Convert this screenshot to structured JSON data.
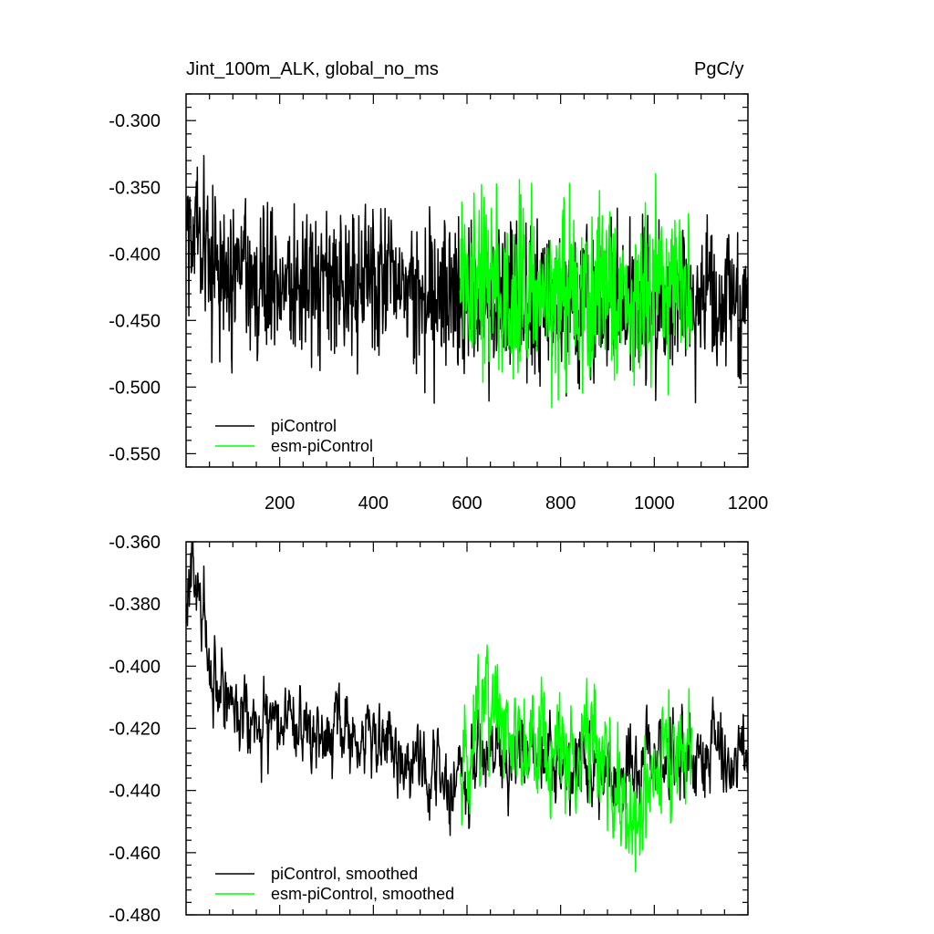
{
  "chart_data": [
    {
      "type": "line",
      "title": "Jint_100m_ALK, global_no_ms",
      "units": "PgC/y",
      "xlabel": "",
      "ylabel": "",
      "xlim": [
        0,
        1200
      ],
      "ylim": [
        -0.56,
        -0.28
      ],
      "xticks": [
        200,
        400,
        600,
        800,
        1000,
        1200
      ],
      "xtick_labels": [
        "200",
        "400",
        "600",
        "800",
        "1000",
        "1200"
      ],
      "yticks": [
        -0.55,
        -0.5,
        -0.45,
        -0.4,
        -0.35,
        -0.3
      ],
      "ytick_labels": [
        "-0.550",
        "-0.500",
        "-0.450",
        "-0.400",
        "-0.350",
        "-0.300"
      ],
      "grid": false,
      "legend_position": "bottom-left",
      "colors": {
        "piControl": "#000000",
        "esm-piControl": "#00ff00"
      },
      "series": [
        {
          "name": "piControl",
          "x_start": 1,
          "x_end": 1200,
          "noise": 0.028,
          "x": [
            1,
            25,
            50,
            100,
            150,
            200,
            300,
            400,
            500,
            580,
            650,
            700,
            800,
            900,
            1000,
            1100,
            1150,
            1200
          ],
          "values": [
            -0.39,
            -0.365,
            -0.41,
            -0.415,
            -0.418,
            -0.42,
            -0.418,
            -0.422,
            -0.428,
            -0.44,
            -0.438,
            -0.435,
            -0.44,
            -0.438,
            -0.436,
            -0.433,
            -0.432,
            -0.435
          ]
        },
        {
          "name": "esm-piControl",
          "x_start": 585,
          "x_end": 1080,
          "noise": 0.032,
          "x": [
            585,
            650,
            700,
            800,
            900,
            1000,
            1080
          ],
          "values": [
            -0.43,
            -0.418,
            -0.425,
            -0.428,
            -0.43,
            -0.428,
            -0.425
          ]
        }
      ]
    },
    {
      "type": "line",
      "title": "",
      "xlabel": "",
      "ylabel": "",
      "xlim": [
        0,
        1200
      ],
      "ylim": [
        -0.48,
        -0.36
      ],
      "xticks": [
        200,
        400,
        600,
        800,
        1000,
        1200
      ],
      "yticks": [
        -0.48,
        -0.46,
        -0.44,
        -0.42,
        -0.4,
        -0.38,
        -0.36
      ],
      "ytick_labels": [
        "-0.480",
        "-0.460",
        "-0.440",
        "-0.420",
        "-0.400",
        "-0.380",
        "-0.360"
      ],
      "grid": false,
      "legend_position": "bottom-left",
      "colors": {
        "piControl": "#000000",
        "esm-piControl": "#00ff00"
      },
      "series": [
        {
          "name": "piControl, smoothed",
          "x_start": 1,
          "x_end": 1200,
          "noise": 0.0075,
          "x": [
            1,
            15,
            30,
            50,
            80,
            100,
            150,
            200,
            250,
            300,
            400,
            500,
            580,
            650,
            700,
            800,
            900,
            1000,
            1100,
            1200
          ],
          "values": [
            -0.382,
            -0.368,
            -0.378,
            -0.395,
            -0.41,
            -0.41,
            -0.415,
            -0.42,
            -0.418,
            -0.422,
            -0.422,
            -0.432,
            -0.44,
            -0.425,
            -0.432,
            -0.43,
            -0.435,
            -0.432,
            -0.43,
            -0.43
          ]
        },
        {
          "name": "esm-piControl, smoothed",
          "x_start": 585,
          "x_end": 1080,
          "noise": 0.011,
          "x": [
            585,
            650,
            700,
            800,
            900,
            950,
            1000,
            1080
          ],
          "values": [
            -0.432,
            -0.412,
            -0.425,
            -0.425,
            -0.435,
            -0.448,
            -0.435,
            -0.42
          ]
        }
      ]
    }
  ]
}
